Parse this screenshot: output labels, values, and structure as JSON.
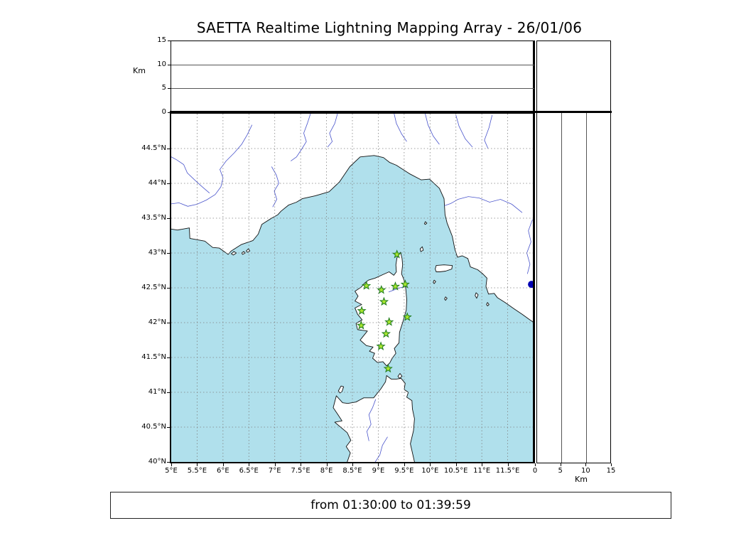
{
  "title": "SAETTA Realtime Lightning Mapping Array - 26/01/06",
  "status_bar": {
    "text": "from 01:30:00 to 01:39:59"
  },
  "colors": {
    "sea": "#b0e0ec",
    "land": "#ffffff",
    "coast": "#111111",
    "river": "#4a55cc",
    "grid": "#808080",
    "star_fill": "#a8e62e",
    "star_edge": "#1e7a1e",
    "event_dot": "#0000b4"
  },
  "map": {
    "lon_min": 5,
    "lon_max": 12,
    "lat_min": 40,
    "lat_max": 45,
    "grid_step": 0.5,
    "lon_ticks": [
      {
        "v": 5,
        "t": "5°E"
      },
      {
        "v": 5.5,
        "t": "5.5°E"
      },
      {
        "v": 6,
        "t": "6°E"
      },
      {
        "v": 6.5,
        "t": "6.5°E"
      },
      {
        "v": 7,
        "t": "7°E"
      },
      {
        "v": 7.5,
        "t": "7.5°E"
      },
      {
        "v": 8,
        "t": "8°E"
      },
      {
        "v": 8.5,
        "t": "8.5°E"
      },
      {
        "v": 9,
        "t": "9°E"
      },
      {
        "v": 9.5,
        "t": "9.5°E"
      },
      {
        "v": 10,
        "t": "10°E"
      },
      {
        "v": 10.5,
        "t": "10.5°E"
      },
      {
        "v": 11,
        "t": "11°E"
      },
      {
        "v": 11.5,
        "t": "11.5°E"
      }
    ],
    "lat_ticks": [
      {
        "v": 40,
        "t": "40°N"
      },
      {
        "v": 40.5,
        "t": "40.5°N"
      },
      {
        "v": 41,
        "t": "41°N"
      },
      {
        "v": 41.5,
        "t": "41.5°N"
      },
      {
        "v": 42,
        "t": "42°N"
      },
      {
        "v": 42.5,
        "t": "42.5°N"
      },
      {
        "v": 43,
        "t": "43°N"
      },
      {
        "v": 43.5,
        "t": "43.5°N"
      },
      {
        "v": 44,
        "t": "44°N"
      },
      {
        "v": 44.5,
        "t": "44.5°N"
      }
    ]
  },
  "altitude_axis": {
    "label": "Km",
    "max": 15,
    "ticks": [
      0,
      5,
      10,
      15
    ],
    "gridlines": [
      5,
      10
    ]
  },
  "stations": [
    [
      9.36,
      42.98
    ],
    [
      8.77,
      42.53
    ],
    [
      9.06,
      42.47
    ],
    [
      9.33,
      42.52
    ],
    [
      9.52,
      42.55
    ],
    [
      9.11,
      42.3
    ],
    [
      8.68,
      42.17
    ],
    [
      9.56,
      42.08
    ],
    [
      8.67,
      41.96
    ],
    [
      9.21,
      42.01
    ],
    [
      9.15,
      41.84
    ],
    [
      9.05,
      41.66
    ],
    [
      9.19,
      41.34
    ]
  ],
  "event_dot": {
    "lon": 11.96,
    "lat": 42.55
  },
  "geo": {
    "mainland": [
      [
        4.95,
        43.35
      ],
      [
        5.12,
        43.33
      ],
      [
        5.35,
        43.36
      ],
      [
        5.36,
        43.21
      ],
      [
        5.65,
        43.17
      ],
      [
        5.8,
        43.08
      ],
      [
        5.93,
        43.07
      ],
      [
        6.1,
        42.98
      ],
      [
        6.16,
        43.03
      ],
      [
        6.35,
        43.12
      ],
      [
        6.58,
        43.18
      ],
      [
        6.68,
        43.27
      ],
      [
        6.75,
        43.41
      ],
      [
        6.94,
        43.5
      ],
      [
        7.06,
        43.55
      ],
      [
        7.12,
        43.6
      ],
      [
        7.27,
        43.69
      ],
      [
        7.42,
        43.73
      ],
      [
        7.53,
        43.78
      ],
      [
        7.78,
        43.82
      ],
      [
        8.05,
        43.88
      ],
      [
        8.25,
        44.02
      ],
      [
        8.45,
        44.24
      ],
      [
        8.65,
        44.38
      ],
      [
        8.92,
        44.4
      ],
      [
        9.1,
        44.37
      ],
      [
        9.22,
        44.3
      ],
      [
        9.35,
        44.26
      ],
      [
        9.6,
        44.14
      ],
      [
        9.83,
        44.05
      ],
      [
        9.99,
        44.06
      ],
      [
        10.18,
        43.93
      ],
      [
        10.27,
        43.78
      ],
      [
        10.29,
        43.55
      ],
      [
        10.33,
        43.43
      ],
      [
        10.43,
        43.24
      ],
      [
        10.48,
        43.05
      ],
      [
        10.53,
        42.94
      ],
      [
        10.62,
        42.96
      ],
      [
        10.73,
        42.92
      ],
      [
        10.78,
        42.8
      ],
      [
        10.92,
        42.76
      ],
      [
        11.02,
        42.7
      ],
      [
        11.1,
        42.64
      ],
      [
        11.08,
        42.52
      ],
      [
        11.13,
        42.41
      ],
      [
        11.24,
        42.42
      ],
      [
        11.3,
        42.36
      ],
      [
        11.45,
        42.29
      ],
      [
        11.62,
        42.2
      ],
      [
        11.78,
        42.12
      ],
      [
        11.93,
        42.04
      ],
      [
        12.05,
        41.98
      ],
      [
        12.05,
        45.05
      ],
      [
        4.95,
        45.05
      ]
    ],
    "corsica": [
      [
        9.43,
        43.01
      ],
      [
        9.46,
        42.92
      ],
      [
        9.47,
        42.83
      ],
      [
        9.45,
        42.7
      ],
      [
        9.49,
        42.63
      ],
      [
        9.53,
        42.5
      ],
      [
        9.55,
        42.33
      ],
      [
        9.54,
        42.18
      ],
      [
        9.47,
        42.0
      ],
      [
        9.41,
        41.86
      ],
      [
        9.4,
        41.71
      ],
      [
        9.31,
        41.63
      ],
      [
        9.34,
        41.56
      ],
      [
        9.27,
        41.49
      ],
      [
        9.22,
        41.42
      ],
      [
        9.16,
        41.38
      ],
      [
        9.09,
        41.44
      ],
      [
        8.98,
        41.43
      ],
      [
        8.89,
        41.49
      ],
      [
        8.93,
        41.56
      ],
      [
        8.83,
        41.59
      ],
      [
        8.9,
        41.65
      ],
      [
        8.77,
        41.67
      ],
      [
        8.65,
        41.75
      ],
      [
        8.79,
        41.88
      ],
      [
        8.6,
        41.9
      ],
      [
        8.57,
        41.99
      ],
      [
        8.69,
        42.04
      ],
      [
        8.6,
        42.12
      ],
      [
        8.55,
        42.21
      ],
      [
        8.68,
        42.26
      ],
      [
        8.55,
        42.31
      ],
      [
        8.61,
        42.38
      ],
      [
        8.55,
        42.45
      ],
      [
        8.67,
        42.51
      ],
      [
        8.74,
        42.57
      ],
      [
        8.81,
        42.61
      ],
      [
        8.94,
        42.64
      ],
      [
        9.12,
        42.7
      ],
      [
        9.21,
        42.73
      ],
      [
        9.3,
        42.68
      ],
      [
        9.35,
        42.73
      ],
      [
        9.34,
        42.83
      ],
      [
        9.36,
        42.93
      ]
    ],
    "sardinia": [
      [
        8.38,
        39.9
      ],
      [
        8.4,
        40.0
      ],
      [
        8.46,
        40.13
      ],
      [
        8.38,
        40.22
      ],
      [
        8.47,
        40.31
      ],
      [
        8.4,
        40.42
      ],
      [
        8.16,
        40.57
      ],
      [
        8.3,
        40.59
      ],
      [
        8.22,
        40.68
      ],
      [
        8.13,
        40.78
      ],
      [
        8.19,
        40.95
      ],
      [
        8.31,
        40.85
      ],
      [
        8.41,
        40.84
      ],
      [
        8.57,
        40.86
      ],
      [
        8.72,
        40.92
      ],
      [
        8.91,
        40.92
      ],
      [
        9.05,
        41.05
      ],
      [
        9.14,
        41.15
      ],
      [
        9.16,
        41.24
      ],
      [
        9.25,
        41.19
      ],
      [
        9.35,
        41.19
      ],
      [
        9.44,
        41.2
      ],
      [
        9.52,
        41.13
      ],
      [
        9.5,
        41.04
      ],
      [
        9.58,
        41.0
      ],
      [
        9.55,
        40.93
      ],
      [
        9.65,
        40.88
      ],
      [
        9.66,
        40.76
      ],
      [
        9.7,
        40.62
      ],
      [
        9.68,
        40.45
      ],
      [
        9.62,
        40.26
      ],
      [
        9.7,
        40.0
      ],
      [
        9.72,
        39.9
      ]
    ],
    "islands": [
      [
        [
          8.23,
          41.02
        ],
        [
          8.28,
          41.09
        ],
        [
          8.33,
          41.08
        ],
        [
          8.3,
          41.01
        ],
        [
          8.26,
          40.99
        ]
      ],
      [
        [
          9.38,
          41.23
        ],
        [
          9.42,
          41.27
        ],
        [
          9.46,
          41.23
        ],
        [
          9.41,
          41.2
        ]
      ],
      [
        [
          10.1,
          42.77
        ],
        [
          10.12,
          42.82
        ],
        [
          10.27,
          42.83
        ],
        [
          10.43,
          42.82
        ],
        [
          10.42,
          42.77
        ],
        [
          10.3,
          42.74
        ],
        [
          10.19,
          42.73
        ],
        [
          10.12,
          42.73
        ]
      ],
      [
        [
          9.82,
          43.02
        ],
        [
          9.81,
          43.06
        ],
        [
          9.85,
          43.09
        ],
        [
          9.87,
          43.04
        ]
      ],
      [
        [
          9.89,
          43.42
        ],
        [
          9.91,
          43.45
        ],
        [
          9.94,
          43.43
        ],
        [
          9.91,
          43.41
        ]
      ],
      [
        [
          10.06,
          42.58
        ],
        [
          10.08,
          42.61
        ],
        [
          10.11,
          42.59
        ],
        [
          10.08,
          42.56
        ]
      ],
      [
        [
          10.28,
          42.34
        ],
        [
          10.3,
          42.37
        ],
        [
          10.33,
          42.35
        ],
        [
          10.3,
          42.32
        ]
      ],
      [
        [
          10.87,
          42.39
        ],
        [
          10.89,
          42.43
        ],
        [
          10.93,
          42.4
        ],
        [
          10.9,
          42.35
        ]
      ],
      [
        [
          11.09,
          42.26
        ],
        [
          11.11,
          42.29
        ],
        [
          11.14,
          42.26
        ],
        [
          11.11,
          42.24
        ]
      ],
      [
        [
          6.16,
          42.99
        ],
        [
          6.21,
          43.02
        ],
        [
          6.26,
          43.0
        ],
        [
          6.2,
          42.97
        ]
      ],
      [
        [
          6.36,
          43.0
        ],
        [
          6.4,
          43.02
        ],
        [
          6.43,
          43.0
        ],
        [
          6.38,
          42.98
        ]
      ],
      [
        [
          6.45,
          43.03
        ],
        [
          6.49,
          43.06
        ],
        [
          6.52,
          43.03
        ],
        [
          6.47,
          43.01
        ]
      ]
    ],
    "rivers": [
      [
        [
          4.95,
          43.7
        ],
        [
          5.15,
          43.72
        ],
        [
          5.32,
          43.67
        ],
        [
          5.5,
          43.7
        ],
        [
          5.68,
          43.76
        ],
        [
          5.85,
          43.84
        ],
        [
          5.96,
          43.95
        ],
        [
          6.0,
          44.08
        ],
        [
          5.94,
          44.2
        ],
        [
          6.06,
          44.32
        ],
        [
          6.22,
          44.44
        ],
        [
          6.36,
          44.56
        ],
        [
          6.47,
          44.7
        ],
        [
          6.56,
          44.84
        ]
      ],
      [
        [
          4.95,
          44.4
        ],
        [
          5.1,
          44.34
        ],
        [
          5.24,
          44.27
        ],
        [
          5.31,
          44.15
        ],
        [
          5.45,
          44.05
        ],
        [
          5.6,
          43.95
        ],
        [
          5.74,
          43.86
        ]
      ],
      [
        [
          6.96,
          43.66
        ],
        [
          7.04,
          43.77
        ],
        [
          6.99,
          43.89
        ],
        [
          7.08,
          44.0
        ],
        [
          7.03,
          44.12
        ],
        [
          6.94,
          44.24
        ]
      ],
      [
        [
          7.7,
          45.02
        ],
        [
          7.63,
          44.86
        ],
        [
          7.56,
          44.72
        ],
        [
          7.61,
          44.6
        ],
        [
          7.51,
          44.48
        ],
        [
          7.42,
          44.38
        ],
        [
          7.31,
          44.32
        ]
      ],
      [
        [
          8.22,
          45.02
        ],
        [
          8.16,
          44.86
        ],
        [
          8.06,
          44.72
        ],
        [
          8.11,
          44.6
        ],
        [
          8.02,
          44.52
        ]
      ],
      [
        [
          9.3,
          45.02
        ],
        [
          9.35,
          44.86
        ],
        [
          9.45,
          44.71
        ],
        [
          9.55,
          44.6
        ]
      ],
      [
        [
          9.9,
          45.02
        ],
        [
          9.96,
          44.84
        ],
        [
          10.06,
          44.68
        ],
        [
          10.18,
          44.56
        ]
      ],
      [
        [
          10.5,
          44.98
        ],
        [
          10.56,
          44.82
        ],
        [
          10.68,
          44.64
        ],
        [
          10.82,
          44.52
        ]
      ],
      [
        [
          11.2,
          44.98
        ],
        [
          11.14,
          44.8
        ],
        [
          11.05,
          44.62
        ],
        [
          11.12,
          44.5
        ]
      ],
      [
        [
          11.78,
          43.58
        ],
        [
          11.58,
          43.7
        ],
        [
          11.36,
          43.77
        ],
        [
          11.15,
          43.73
        ],
        [
          10.95,
          43.79
        ],
        [
          10.74,
          43.81
        ],
        [
          10.54,
          43.77
        ],
        [
          10.4,
          43.71
        ],
        [
          10.28,
          43.68
        ]
      ],
      [
        [
          11.98,
          43.48
        ],
        [
          11.9,
          43.32
        ],
        [
          11.95,
          43.16
        ],
        [
          11.87,
          43.0
        ],
        [
          11.93,
          42.84
        ],
        [
          11.88,
          42.7
        ]
      ],
      [
        [
          8.95,
          40.9
        ],
        [
          8.89,
          40.78
        ],
        [
          8.82,
          40.68
        ],
        [
          8.86,
          40.54
        ],
        [
          8.78,
          40.44
        ],
        [
          8.82,
          40.3
        ]
      ],
      [
        [
          9.18,
          40.36
        ],
        [
          9.08,
          40.24
        ],
        [
          9.03,
          40.1
        ],
        [
          8.94,
          40.0
        ]
      ],
      [
        [
          9.2,
          42.44
        ],
        [
          9.31,
          42.47
        ],
        [
          9.42,
          42.5
        ],
        [
          9.52,
          42.52
        ]
      ]
    ]
  }
}
